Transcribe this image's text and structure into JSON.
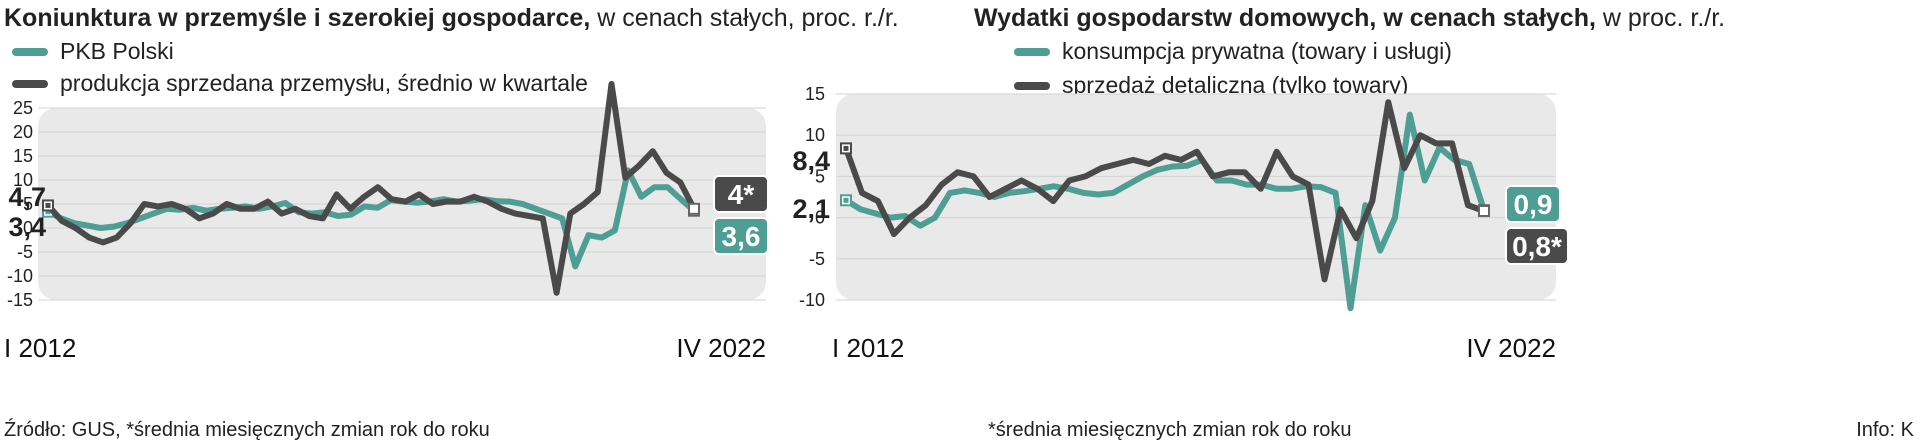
{
  "left": {
    "title_bold": "Koniunktura w przemyśle i szerokiej gospodarce,",
    "title_rest": " w cenach stałych, proc. r./r.",
    "footnote": "Źródło: GUS, *średnia miesięcznych zmian rok do roku",
    "start_label": "I 2012",
    "end_label": "IV 2022",
    "start_values": [
      "4,7",
      "3,4"
    ],
    "badges": [
      {
        "text": "4*",
        "color": "#4a4a4a"
      },
      {
        "text": "3,6",
        "color": "#4e9e94"
      }
    ]
  },
  "right": {
    "title_bold": "Wydatki gospodarstw domowych, w cenach stałych,",
    "title_rest": " w proc. r./r.",
    "footnote": "*średnia miesięcznych zmian rok do roku",
    "start_label": "I 2012",
    "end_label": "IV 2022",
    "start_values": [
      "8,4",
      "2,1"
    ],
    "badges": [
      {
        "text": "0,9",
        "color": "#4e9e94"
      },
      {
        "text": "0,8*",
        "color": "#4a4a4a"
      }
    ]
  },
  "credit": "Info: K",
  "colors": {
    "teal": "#4e9e94",
    "dark": "#4a4a4a",
    "plot_bg": "#e9e9e9"
  },
  "chart_data": [
    {
      "type": "line",
      "title": "Koniunktura w przemyśle i szerokiej gospodarce, w cenach stałych, proc. r./r.",
      "x_start": "I 2012",
      "x_end": "IV 2022",
      "ylim": [
        -15,
        25
      ],
      "yticks": [
        -15,
        -10,
        -5,
        0,
        5,
        10,
        15,
        20,
        25
      ],
      "grid": true,
      "series": [
        {
          "name": "PKB Polski",
          "color": "#4e9e94",
          "values": [
            3.4,
            2.0,
            1.0,
            0.5,
            0.0,
            0.3,
            1.0,
            2.0,
            3.0,
            4.0,
            3.8,
            4.2,
            3.6,
            4.0,
            4.2,
            4.5,
            4.0,
            4.5,
            5.2,
            3.3,
            3.0,
            3.3,
            2.5,
            2.8,
            4.5,
            4.2,
            5.8,
            5.5,
            5.3,
            5.5,
            6.0,
            5.5,
            5.7,
            6.0,
            5.6,
            5.5,
            5.0,
            4.0,
            3.0,
            2.0,
            -8.0,
            -1.5,
            -2.0,
            -0.5,
            12.0,
            6.5,
            8.5,
            8.5,
            6.0,
            3.6
          ],
          "end_label": "3,6"
        },
        {
          "name": "produkcja sprzedana przemysłu, średnio w kwartale",
          "color": "#4a4a4a",
          "values": [
            4.7,
            1.5,
            0.0,
            -2.0,
            -3.0,
            -2.0,
            1.0,
            5.0,
            4.5,
            5.0,
            4.0,
            2.0,
            3.0,
            5.0,
            4.0,
            4.0,
            5.5,
            3.0,
            4.0,
            2.5,
            2.0,
            7.0,
            4.0,
            6.5,
            8.5,
            6.0,
            5.5,
            7.0,
            5.0,
            5.5,
            5.5,
            6.5,
            5.5,
            4.0,
            3.0,
            2.5,
            2.0,
            -13.5,
            3.0,
            5.0,
            7.5,
            30.0,
            10.5,
            13.0,
            16.0,
            11.5,
            9.5,
            4.0
          ],
          "end_label": "4*"
        }
      ]
    },
    {
      "type": "line",
      "title": "Wydatki gospodarstw domowych, w cenach stałych, w proc. r./r.",
      "x_start": "I 2012",
      "x_end": "IV 2022",
      "ylim": [
        -10,
        15
      ],
      "yticks": [
        -10,
        -5,
        0,
        5,
        10,
        15
      ],
      "grid": true,
      "series": [
        {
          "name": "konsumpcja prywatna (towary i usługi)",
          "color": "#4e9e94",
          "values": [
            2.1,
            1.0,
            0.5,
            0.0,
            0.2,
            -1.0,
            0.0,
            3.0,
            3.3,
            3.0,
            2.5,
            3.0,
            3.2,
            3.5,
            3.8,
            3.5,
            3.0,
            2.8,
            3.0,
            4.0,
            5.0,
            5.8,
            6.2,
            6.3,
            7.0,
            4.5,
            4.5,
            4.0,
            4.0,
            3.5,
            3.5,
            3.8,
            3.7,
            3.0,
            -11.0,
            1.5,
            -4.0,
            0.0,
            12.5,
            4.5,
            8.5,
            7.0,
            6.5,
            0.9
          ],
          "end_label": "0,9"
        },
        {
          "name": "sprzedaż detaliczna (tylko towary)",
          "color": "#4a4a4a",
          "values": [
            8.4,
            3.0,
            2.0,
            -2.0,
            0.0,
            1.5,
            4.0,
            5.5,
            5.0,
            2.5,
            3.5,
            4.5,
            3.5,
            2.0,
            4.5,
            5.0,
            6.0,
            6.5,
            7.0,
            6.5,
            7.5,
            7.0,
            8.0,
            5.0,
            5.5,
            5.5,
            3.5,
            8.0,
            5.0,
            4.0,
            -7.5,
            1.0,
            -2.5,
            2.0,
            14.0,
            6.0,
            10.0,
            9.0,
            9.0,
            1.5,
            0.8
          ],
          "end_label": "0,8*"
        }
      ]
    }
  ]
}
